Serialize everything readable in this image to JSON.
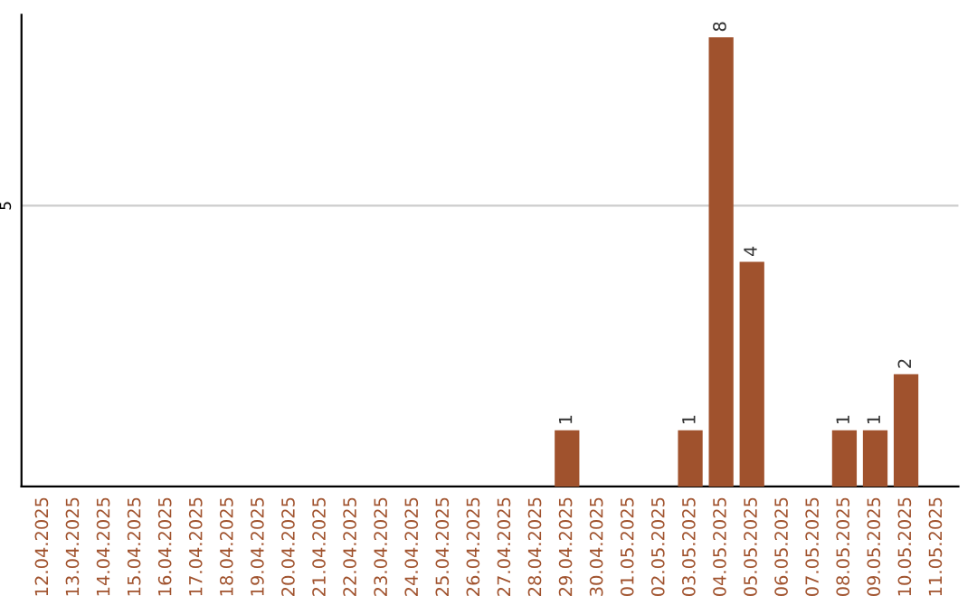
{
  "chart_data": {
    "type": "bar",
    "categories": [
      "12.04.2025",
      "13.04.2025",
      "14.04.2025",
      "15.04.2025",
      "16.04.2025",
      "17.04.2025",
      "18.04.2025",
      "19.04.2025",
      "20.04.2025",
      "21.04.2025",
      "22.04.2025",
      "23.04.2025",
      "24.04.2025",
      "25.04.2025",
      "26.04.2025",
      "27.04.2025",
      "28.04.2025",
      "29.04.2025",
      "30.04.2025",
      "01.05.2025",
      "02.05.2025",
      "03.05.2025",
      "04.05.2025",
      "05.05.2025",
      "06.05.2025",
      "07.05.2025",
      "08.05.2025",
      "09.05.2025",
      "10.05.2025",
      "11.05.2025"
    ],
    "values": [
      null,
      null,
      null,
      null,
      null,
      null,
      null,
      null,
      null,
      null,
      null,
      null,
      null,
      null,
      null,
      null,
      null,
      1,
      null,
      null,
      null,
      1,
      8,
      4,
      null,
      null,
      1,
      1,
      2,
      null
    ],
    "data_labels": true,
    "color": "#a0522d",
    "ylim": [
      0,
      8.4
    ],
    "ref_lines": [
      {
        "axis": "y",
        "value": 5,
        "label": "5",
        "color": "#cccccc"
      }
    ]
  }
}
